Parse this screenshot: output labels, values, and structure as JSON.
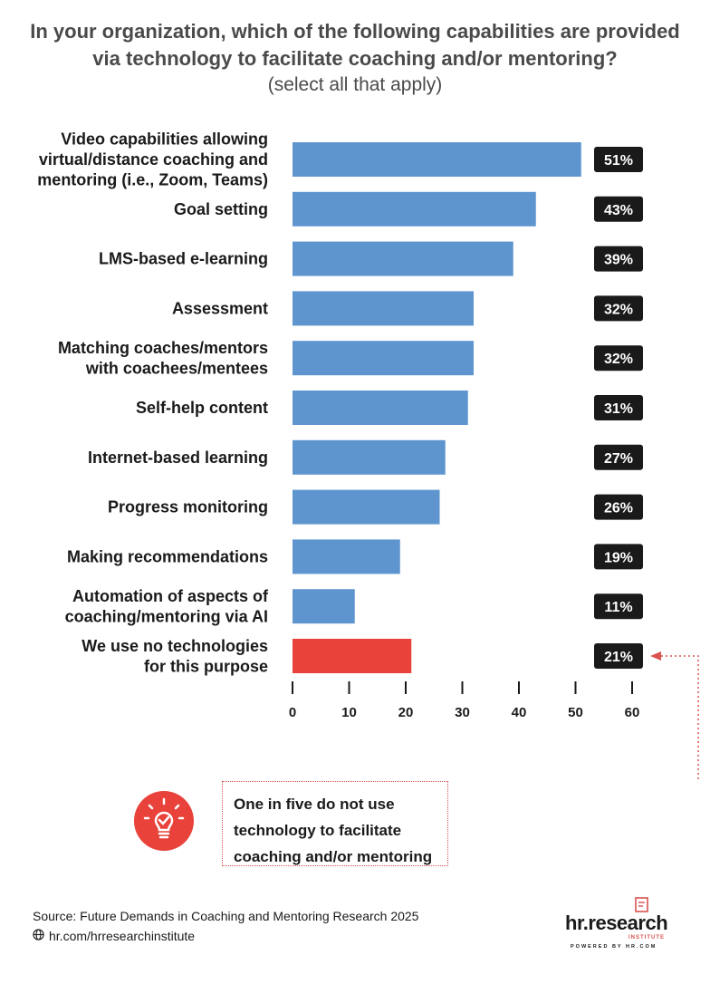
{
  "header": {
    "title": "In your organization, which of the following capabilities are provided via technology to facilitate coaching and/or mentoring?",
    "subtitle": "(select all that apply)"
  },
  "chart_data": {
    "type": "bar",
    "orientation": "horizontal",
    "categories": [
      [
        "Video capabilities allowing",
        "virtual/distance coaching and",
        "mentoring (i.e., Zoom, Teams)"
      ],
      [
        "Goal setting"
      ],
      [
        "LMS-based e-learning"
      ],
      [
        "Assessment"
      ],
      [
        "Matching coaches/mentors",
        "with coachees/mentees"
      ],
      [
        "Self-help content"
      ],
      [
        "Internet-based learning"
      ],
      [
        "Progress monitoring"
      ],
      [
        "Making recommendations"
      ],
      [
        "Automation of aspects of",
        "coaching/mentoring via AI"
      ],
      [
        "We use no technologies",
        "for this purpose"
      ]
    ],
    "values": [
      51,
      43,
      39,
      32,
      32,
      31,
      27,
      26,
      19,
      11,
      21
    ],
    "value_labels": [
      "51%",
      "43%",
      "39%",
      "32%",
      "32%",
      "31%",
      "27%",
      "26%",
      "19%",
      "11%",
      "21%"
    ],
    "highlight_index": 10,
    "xlim": [
      0,
      60
    ],
    "xticks": [
      0,
      10,
      20,
      30,
      40,
      50,
      60
    ],
    "colors": {
      "bar": "#5f95cf",
      "highlight": "#e8423a",
      "label_bg": "#1a1a1a",
      "callout": "#d9534f"
    }
  },
  "callout": {
    "lines": [
      "One in five do not use",
      "technology to facilitate",
      "coaching and/or mentoring"
    ],
    "icon": "lightbulb-check-icon"
  },
  "footer": {
    "source": "Source:  Future Demands in Coaching and Mentoring Research 2025",
    "link": "hr.com/hrresearchinstitute",
    "link_icon": "globe-icon",
    "logo": {
      "main": "hr.research",
      "sub": "INSTITUTE",
      "powered": "POWERED BY HR.COM"
    }
  }
}
